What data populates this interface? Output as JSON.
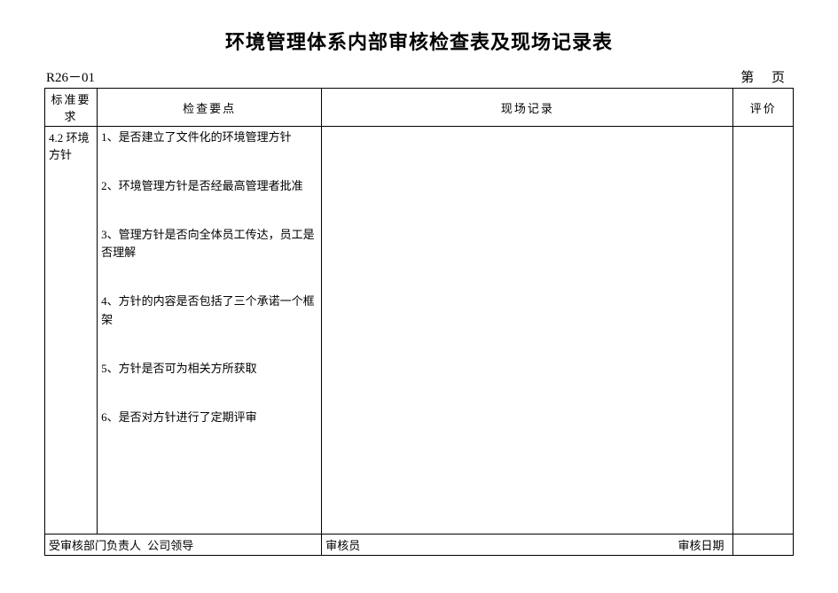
{
  "title": "环境管理体系内部审核检查表及现场记录表",
  "form_code": "R26－01",
  "page_label": "第 页",
  "columns": {
    "standard": "标准要求",
    "check": "检查要点",
    "record": "现场记录",
    "eval": "评价"
  },
  "standard_req": "4.2 环境方针",
  "check_items": [
    "1、是否建立了文件化的环境管理方针",
    "2、环境管理方针是否经最高管理者批准",
    "3、管理方针是否向全体员工传达，员工是否理解",
    "4、方针的内容是否包括了三个承诺一个框架",
    "5、方针是否可为相关方所获取",
    "6、是否对方针进行了定期评审"
  ],
  "record_text": "",
  "eval_text": "",
  "footer": {
    "dept_head_label": "受审核部门负责人",
    "dept_head_value": "公司领导",
    "auditor_label": "审核员",
    "auditor_value": "",
    "audit_date_label": "审核日期",
    "audit_date_value": ""
  }
}
